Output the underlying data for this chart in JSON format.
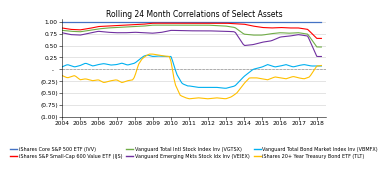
{
  "title": "Rolling 24 Month Correlations of Select Assets",
  "title_fontsize": 5.5,
  "xlim": [
    2004,
    2018.5
  ],
  "ylim": [
    -1.0,
    1.05
  ],
  "yticks": [
    1.0,
    0.75,
    0.5,
    0.25,
    0.0,
    -0.25,
    -0.5,
    -0.75,
    -1.0
  ],
  "ytick_labels": [
    "1.00",
    "0.75",
    "0.50",
    "0.25",
    " -  ",
    "(0.25)",
    "(0.50)",
    "(0.75)",
    "(1.00)"
  ],
  "xticks": [
    2004,
    2005,
    2006,
    2007,
    2008,
    2009,
    2010,
    2011,
    2012,
    2013,
    2014,
    2015,
    2016,
    2017,
    2018
  ],
  "background_color": "#FFFFFF",
  "grid_color": "#D0D0D0",
  "lines": [
    {
      "key": "IVV",
      "color": "#4472C4",
      "label": "iShares Core S&P 500 ETF (IVV)",
      "lw": 0.9
    },
    {
      "key": "IJS",
      "color": "#FF0000",
      "label": "iShares S&P Small-Cap 600 Value ETF (IJS)",
      "lw": 0.8
    },
    {
      "key": "VGTSX",
      "color": "#70AD47",
      "label": "Vanguard Total Intl Stock Index Inv (VGTSX)",
      "lw": 0.8
    },
    {
      "key": "VEIEX",
      "color": "#7030A0",
      "label": "Vanguard Emerging Mkts Stock Idx Inv (VEIEX)",
      "lw": 0.8
    },
    {
      "key": "VBMFX",
      "color": "#00B0F0",
      "label": "Vanguard Total Bond Market Index Inv (VBMFX)",
      "lw": 0.8
    },
    {
      "key": "TLT",
      "color": "#FFC000",
      "label": "iShares 20+ Year Treasury Bond ETF (TLT)",
      "lw": 0.8
    }
  ],
  "legend_ncol": 3,
  "legend_fontsize": 3.5,
  "tick_fontsize": 4.2
}
